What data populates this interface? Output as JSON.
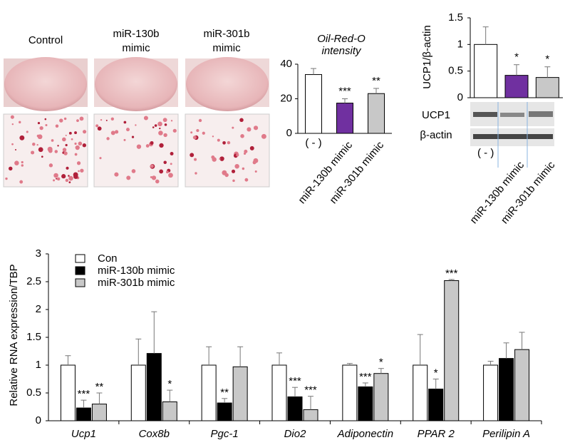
{
  "image_panel": {
    "labels": [
      [
        "Control"
      ],
      [
        "miR-130b",
        "mimic"
      ],
      [
        "miR-301b",
        "mimic"
      ]
    ]
  },
  "chart_data": [
    {
      "type": "bar",
      "title": [
        "Oil-Red-O",
        "intensity"
      ],
      "categories": [
        "( - )",
        "miR-130b mimic",
        "miR-301b mimic"
      ],
      "values": [
        34,
        17.5,
        23
      ],
      "errors": [
        3.5,
        2.5,
        3
      ],
      "colors": [
        "#ffffff",
        "#7030a0",
        "#c8c8c8"
      ],
      "annotations": [
        null,
        "***",
        "**"
      ],
      "ylim": [
        0,
        40
      ],
      "yticks": [
        0,
        20,
        40
      ]
    },
    {
      "type": "bar",
      "y_label": "UCP1/β-actin",
      "categories": [
        "( - )",
        "miR-130b mimic",
        "miR-301b mimic"
      ],
      "values": [
        1,
        0.42,
        0.38
      ],
      "errors": [
        0.33,
        0.2,
        0.2
      ],
      "colors": [
        "#ffffff",
        "#7030a0",
        "#c8c8c8"
      ],
      "annotations": [
        null,
        "*",
        "*"
      ],
      "blot_labels": [
        "UCP1",
        "β-actin"
      ],
      "ylim": [
        0,
        1.5
      ],
      "yticks": [
        0,
        0.5,
        1,
        1.5
      ]
    },
    {
      "type": "grouped-bar",
      "y_label": "Relative RNA expression/TBP",
      "categories": [
        "Ucp1",
        "Cox8b",
        "Pgc-1",
        "Dio2",
        "Adiponectin",
        "PPAR  2",
        "Perilipin A"
      ],
      "series": [
        {
          "name": "Con",
          "color": "#ffffff",
          "values": [
            1,
            1,
            1,
            1,
            1,
            1,
            1
          ],
          "errors": [
            0.17,
            0.47,
            0.33,
            0.22,
            0.03,
            0.55,
            0.07
          ],
          "annotations": [
            null,
            null,
            null,
            null,
            null,
            null,
            null
          ]
        },
        {
          "name": "miR-130b mimic",
          "color": "#000000",
          "values": [
            0.23,
            1.21,
            0.32,
            0.43,
            0.61,
            0.57,
            1.12
          ],
          "errors": [
            0.14,
            0.75,
            0.08,
            0.17,
            0.07,
            0.18,
            0.28
          ],
          "annotations": [
            "***",
            null,
            "**",
            "***",
            "***",
            "*",
            null
          ]
        },
        {
          "name": "miR-301b mimic",
          "color": "#c8c8c8",
          "values": [
            0.3,
            0.34,
            0.97,
            0.2,
            0.85,
            2.52,
            1.28
          ],
          "errors": [
            0.2,
            0.21,
            0.36,
            0.24,
            0.09,
            0.02,
            0.31
          ],
          "annotations": [
            "**",
            "*",
            null,
            "***",
            "*",
            "***",
            null
          ]
        }
      ],
      "ylim": [
        0,
        3
      ],
      "yticks": [
        0,
        0.5,
        1,
        1.5,
        2,
        2.5,
        3
      ]
    }
  ]
}
